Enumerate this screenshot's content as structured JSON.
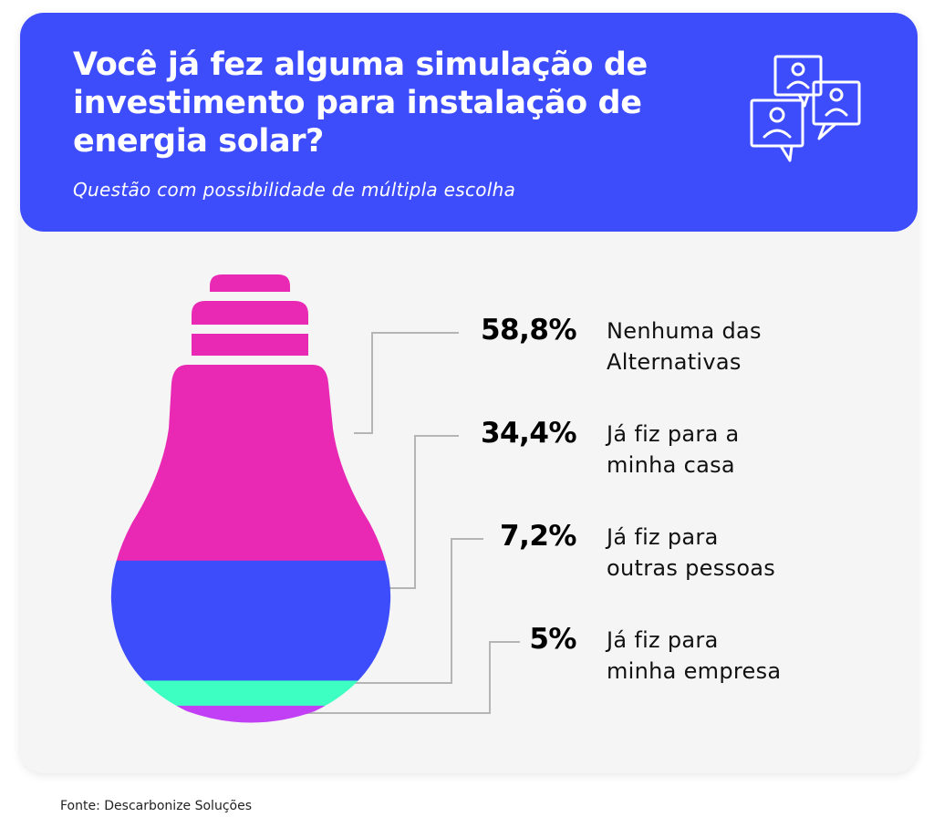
{
  "header": {
    "title": "Você já fez alguma simulação de investimento para instalação de energia solar?",
    "subtitle": "Questão com possibilidade de múltipla escolha",
    "icon": "people-chat-icon"
  },
  "chart_data": {
    "type": "bar",
    "series": [
      {
        "percent_label": "58,8%",
        "value": 58.8,
        "label": "Nenhuma das\nAlternativas",
        "color": "#e928b3"
      },
      {
        "percent_label": "34,4%",
        "value": 34.4,
        "label": "Já fiz para a\nminha casa",
        "color": "#3d4dfb"
      },
      {
        "percent_label": "7,2%",
        "value": 7.2,
        "label": "Já fiz para\noutras pessoas",
        "color": "#3dffc1"
      },
      {
        "percent_label": "5%",
        "value": 5,
        "label": "Já fiz para\nminha empresa",
        "color": "#c13ff5"
      }
    ]
  },
  "colors": {
    "header_bg": "#3d4dfb",
    "card_bg": "#f5f5f5",
    "leader_line": "#b5b5b5"
  },
  "footer": {
    "source": "Fonte: Descarbonize Soluções"
  }
}
